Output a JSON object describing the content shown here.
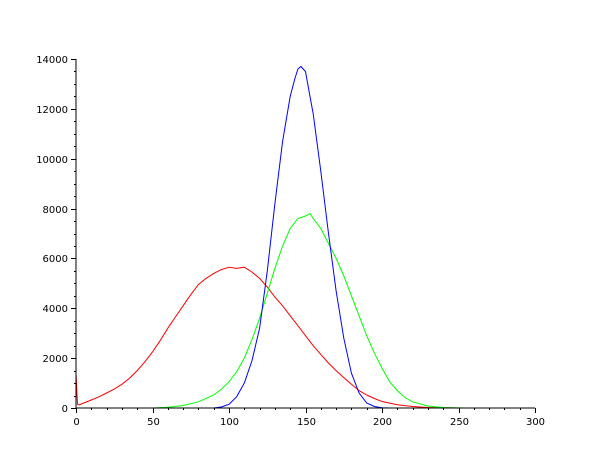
{
  "chart_data": {
    "type": "line",
    "title": "",
    "xlabel": "",
    "ylabel": "",
    "xlim": [
      0,
      300
    ],
    "ylim": [
      0,
      14000
    ],
    "x_ticks": [
      0,
      50,
      100,
      150,
      200,
      250,
      300
    ],
    "x_tick_labels": [
      "0",
      "50",
      "100",
      "150",
      "200",
      "250",
      "300"
    ],
    "y_ticks": [
      0,
      2000,
      4000,
      6000,
      8000,
      10000,
      12000,
      14000
    ],
    "y_tick_labels": [
      "0",
      "2000",
      "4000",
      "6000",
      "8000",
      "10000",
      "12000",
      "14000"
    ],
    "x_minor_step": 10,
    "y_minor_step": 500,
    "grid": false,
    "legend": "none",
    "series": [
      {
        "color": "#ff0000",
        "x": [
          0,
          1,
          2,
          5,
          10,
          15,
          20,
          25,
          30,
          35,
          40,
          45,
          50,
          55,
          60,
          65,
          70,
          75,
          80,
          85,
          90,
          95,
          100,
          105,
          110,
          115,
          120,
          125,
          130,
          135,
          140,
          145,
          150,
          155,
          160,
          165,
          170,
          175,
          180,
          185,
          190,
          195,
          200,
          210,
          220,
          230,
          240,
          250
        ],
        "y": [
          1400,
          150,
          120,
          200,
          320,
          450,
          600,
          760,
          950,
          1200,
          1500,
          1850,
          2250,
          2700,
          3200,
          3650,
          4100,
          4550,
          4950,
          5200,
          5400,
          5550,
          5650,
          5600,
          5650,
          5450,
          5200,
          4850,
          4450,
          4100,
          3700,
          3300,
          2900,
          2500,
          2150,
          1800,
          1500,
          1220,
          950,
          700,
          520,
          380,
          260,
          130,
          60,
          20,
          5,
          0
        ]
      },
      {
        "color": "#00ff00",
        "x": [
          50,
          60,
          70,
          80,
          90,
          95,
          100,
          105,
          110,
          115,
          120,
          125,
          130,
          135,
          140,
          145,
          150,
          153,
          155,
          160,
          165,
          170,
          175,
          180,
          185,
          190,
          195,
          200,
          205,
          210,
          215,
          220,
          230,
          240,
          250,
          255
        ],
        "y": [
          0,
          30,
          100,
          250,
          520,
          750,
          1050,
          1450,
          2000,
          2750,
          3600,
          4600,
          5600,
          6500,
          7200,
          7600,
          7700,
          7800,
          7600,
          7200,
          6600,
          6000,
          5300,
          4500,
          3700,
          2900,
          2200,
          1600,
          1050,
          700,
          420,
          250,
          80,
          20,
          5,
          0
        ]
      },
      {
        "color": "#0000ff",
        "x": [
          90,
          95,
          100,
          105,
          110,
          115,
          120,
          125,
          130,
          135,
          140,
          143,
          145,
          147,
          150,
          152,
          155,
          160,
          165,
          170,
          175,
          180,
          185,
          190,
          195,
          200,
          205
        ],
        "y": [
          0,
          40,
          150,
          450,
          1000,
          1900,
          3200,
          5500,
          8200,
          10700,
          12500,
          13200,
          13600,
          13700,
          13500,
          12800,
          11800,
          9500,
          7000,
          4700,
          2800,
          1400,
          600,
          200,
          60,
          10,
          0
        ]
      },
      {
        "color": "#00cccc",
        "x": [
          252,
          253
        ],
        "y": [
          0,
          0
        ]
      }
    ]
  }
}
